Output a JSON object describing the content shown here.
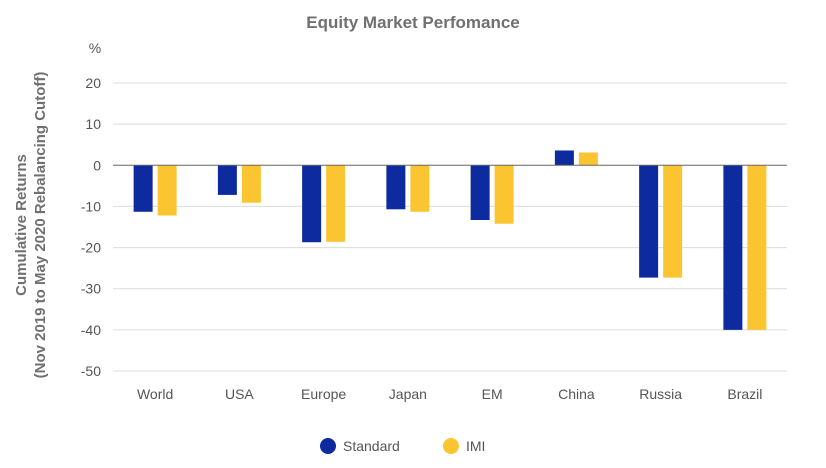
{
  "chart_data": {
    "type": "bar",
    "title": "Equity Market Perfomance",
    "unit_label": "%",
    "ylabel_lines": [
      "Cumulative Returns",
      "(Nov 2019 to May 2020 Rebalancing Cutoff)"
    ],
    "xlabel": "",
    "categories": [
      "World",
      "USA",
      "Europe",
      "Japan",
      "EM",
      "China",
      "Russia",
      "Brazil"
    ],
    "series": [
      {
        "name": "Standard",
        "color": "#0d2a9e",
        "values": [
          -11.3,
          -7.2,
          -18.7,
          -10.7,
          -13.3,
          3.6,
          -27.3,
          -40.0
        ]
      },
      {
        "name": "IMI",
        "color": "#fbc531",
        "values": [
          -12.2,
          -9.1,
          -18.6,
          -11.3,
          -14.2,
          3.1,
          -27.3,
          -40.0
        ]
      }
    ],
    "ylim": [
      -50,
      20
    ],
    "yticks": [
      "20",
      "10",
      "0",
      "-10",
      "-20",
      "-30",
      "-40",
      "-50"
    ],
    "grid": true,
    "legend_position": "bottom"
  }
}
